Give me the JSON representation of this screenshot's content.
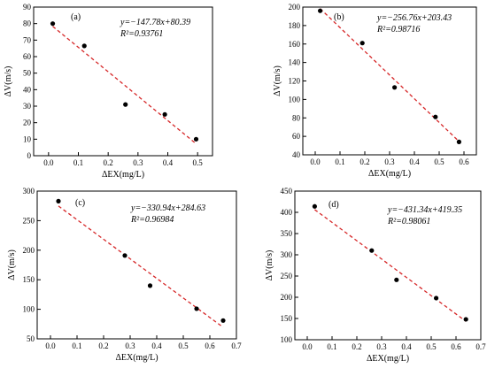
{
  "chart_data": [
    {
      "type": "scatter",
      "panel_label": "(a)",
      "xlabel": "ΔEX(mg/L)",
      "ylabel": "ΔV(m/s)",
      "xlim": [
        -0.05,
        0.55
      ],
      "ylim": [
        0,
        90
      ],
      "xticks": [
        0.0,
        0.1,
        0.2,
        0.3,
        0.4,
        0.5
      ],
      "yticks": [
        0,
        10,
        20,
        30,
        40,
        50,
        60,
        70,
        80,
        90
      ],
      "xtick_labels": [
        "0.0",
        "0.1",
        "0.2",
        "0.3",
        "0.4",
        "0.5"
      ],
      "ytick_labels": [
        "0",
        "10",
        "20",
        "30",
        "40",
        "50",
        "60",
        "70",
        "80",
        "90"
      ],
      "points": {
        "x": [
          0.014,
          0.12,
          0.258,
          0.39,
          0.495
        ],
        "y": [
          80.0,
          66.5,
          31.0,
          25.0,
          10.0
        ]
      },
      "fit": {
        "slope": -147.78,
        "intercept": 80.39,
        "x_range": [
          0.014,
          0.495
        ],
        "equation": "y=−147.78x+80.39",
        "r2": "R²=0.93761"
      },
      "legend_position": "top-right",
      "grid": false
    },
    {
      "type": "scatter",
      "panel_label": "(b)",
      "xlabel": "ΔEX(mg/L)",
      "ylabel": "ΔV(m/s)",
      "xlim": [
        -0.05,
        0.65
      ],
      "ylim": [
        40,
        200
      ],
      "xticks": [
        0.0,
        0.1,
        0.2,
        0.3,
        0.4,
        0.5,
        0.6
      ],
      "yticks": [
        40,
        60,
        80,
        100,
        120,
        140,
        160,
        180,
        200
      ],
      "xtick_labels": [
        "0.0",
        "0.1",
        "0.2",
        "0.3",
        "0.4",
        "0.5",
        "0.6"
      ],
      "ytick_labels": [
        "40",
        "60",
        "80",
        "100",
        "120",
        "140",
        "160",
        "180",
        "200"
      ],
      "points": {
        "x": [
          0.02,
          0.19,
          0.32,
          0.485,
          0.58
        ],
        "y": [
          196.0,
          161.0,
          113.0,
          81.0,
          54.0
        ]
      },
      "fit": {
        "slope": -256.76,
        "intercept": 203.43,
        "x_range": [
          0.02,
          0.58
        ],
        "equation": "y=−256.76x+203.43",
        "r2": "R²=0.98716"
      },
      "legend_position": "top-right",
      "grid": false
    },
    {
      "type": "scatter",
      "panel_label": "(c)",
      "xlabel": "ΔEX(mg/L)",
      "ylabel": "ΔV(m/s)",
      "xlim": [
        -0.05,
        0.7
      ],
      "ylim": [
        50,
        300
      ],
      "xticks": [
        0.0,
        0.1,
        0.2,
        0.3,
        0.4,
        0.5,
        0.6,
        0.7
      ],
      "yticks": [
        50,
        100,
        150,
        200,
        250,
        300
      ],
      "xtick_labels": [
        "0.0",
        "0.1",
        "0.2",
        "0.3",
        "0.4",
        "0.5",
        "0.6",
        "0.7"
      ],
      "ytick_labels": [
        "50",
        "100",
        "150",
        "200",
        "250",
        "300"
      ],
      "points": {
        "x": [
          0.03,
          0.28,
          0.375,
          0.55,
          0.65
        ],
        "y": [
          283.0,
          191.0,
          140.0,
          101.0,
          81.0
        ]
      },
      "fit": {
        "slope": -330.94,
        "intercept": 284.63,
        "x_range": [
          0.03,
          0.65
        ],
        "equation": "y=−330.94x+284.63",
        "r2": "R²=0.96984"
      },
      "legend_position": "top-right",
      "grid": false
    },
    {
      "type": "scatter",
      "panel_label": "(d)",
      "xlabel": "ΔEX(mg/L)",
      "ylabel": "ΔV(m/s)",
      "xlim": [
        -0.05,
        0.7
      ],
      "ylim": [
        100,
        450
      ],
      "xticks": [
        0.0,
        0.1,
        0.2,
        0.3,
        0.4,
        0.5,
        0.6,
        0.7
      ],
      "yticks": [
        100,
        150,
        200,
        250,
        300,
        350,
        400,
        450
      ],
      "xtick_labels": [
        "0.0",
        "0.1",
        "0.2",
        "0.3",
        "0.4",
        "0.5",
        "0.6",
        "0.7"
      ],
      "ytick_labels": [
        "100",
        "150",
        "200",
        "250",
        "300",
        "350",
        "400",
        "450"
      ],
      "points": {
        "x": [
          0.03,
          0.26,
          0.36,
          0.52,
          0.64
        ],
        "y": [
          414.0,
          310.0,
          241.0,
          198.0,
          148.0
        ]
      },
      "fit": {
        "slope": -431.34,
        "intercept": 419.35,
        "x_range": [
          0.03,
          0.64
        ],
        "equation": "y=−431.34x+419.35",
        "r2": "R²=0.98061"
      },
      "legend_position": "top-right",
      "grid": false
    }
  ],
  "style": {
    "point_color": "#000000",
    "fit_color": "#d62728",
    "axis_color": "#000000"
  }
}
